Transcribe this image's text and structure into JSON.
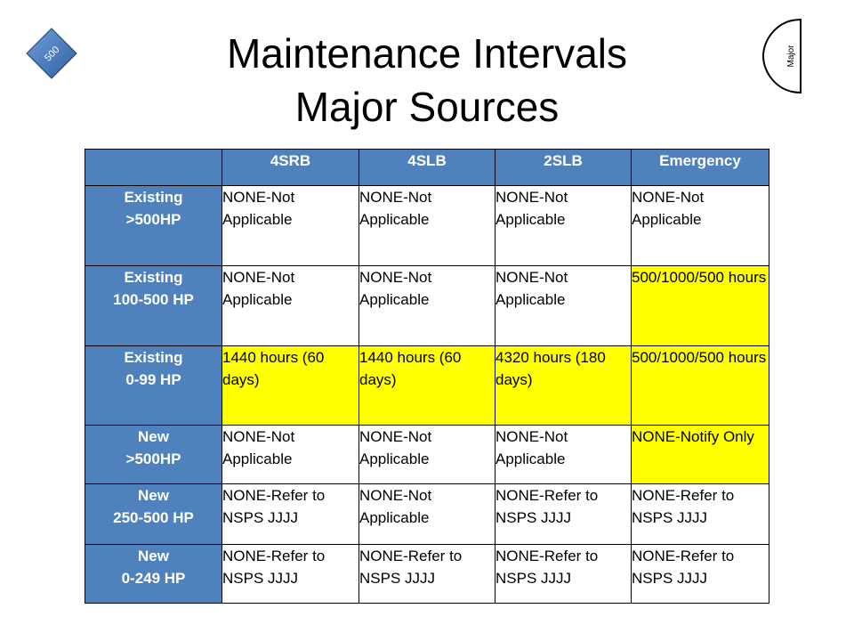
{
  "slide": {
    "title_line1": "Maintenance Intervals",
    "title_line2": "Major Sources",
    "badge_left": "500",
    "badge_right": "Major"
  },
  "colors": {
    "header_blue": "#4f81bd",
    "highlight_yellow": "#ffff00"
  },
  "table": {
    "headers": [
      "",
      "4SRB",
      "4SLB",
      "2SLB",
      "Emergency"
    ],
    "rows": [
      {
        "label": "Existing\n>500HP",
        "cells": [
          {
            "text": "NONE-Not Applicable",
            "highlight": false
          },
          {
            "text": "NONE-Not Applicable",
            "highlight": false
          },
          {
            "text": "NONE-Not Applicable",
            "highlight": false
          },
          {
            "text": "NONE-Not Applicable",
            "highlight": false
          }
        ]
      },
      {
        "label": "Existing\n100-500 HP",
        "cells": [
          {
            "text": "NONE-Not Applicable",
            "highlight": false
          },
          {
            "text": "NONE-Not Applicable",
            "highlight": false
          },
          {
            "text": "NONE-Not Applicable",
            "highlight": false
          },
          {
            "text": "500/1000/500 hours",
            "highlight": true
          }
        ]
      },
      {
        "label": "Existing\n0-99 HP",
        "cells": [
          {
            "text": "1440 hours (60 days)",
            "highlight": true
          },
          {
            "text": "1440 hours (60 days)",
            "highlight": true
          },
          {
            "text": "4320 hours (180 days)",
            "highlight": true
          },
          {
            "text": "500/1000/500 hours",
            "highlight": true
          }
        ]
      },
      {
        "label": "New\n>500HP",
        "cells": [
          {
            "text": "NONE-Not Applicable",
            "highlight": false
          },
          {
            "text": "NONE-Not Applicable",
            "highlight": false
          },
          {
            "text": "NONE-Not Applicable",
            "highlight": false
          },
          {
            "text": "NONE-Notify Only",
            "highlight": true
          }
        ]
      },
      {
        "label": "New\n250-500 HP",
        "cells": [
          {
            "text": "NONE-Refer to NSPS JJJJ",
            "highlight": false
          },
          {
            "text": "NONE-Not Applicable",
            "highlight": false
          },
          {
            "text": "NONE-Refer to NSPS JJJJ",
            "highlight": false
          },
          {
            "text": "NONE-Refer to NSPS JJJJ",
            "highlight": false
          }
        ]
      },
      {
        "label": "New\n0-249 HP",
        "cells": [
          {
            "text": "NONE-Refer to NSPS JJJJ",
            "highlight": false
          },
          {
            "text": "NONE-Refer to NSPS JJJJ",
            "highlight": false
          },
          {
            "text": "NONE-Refer to NSPS JJJJ",
            "highlight": false
          },
          {
            "text": "NONE-Refer to NSPS JJJJ",
            "highlight": false
          }
        ]
      }
    ]
  }
}
